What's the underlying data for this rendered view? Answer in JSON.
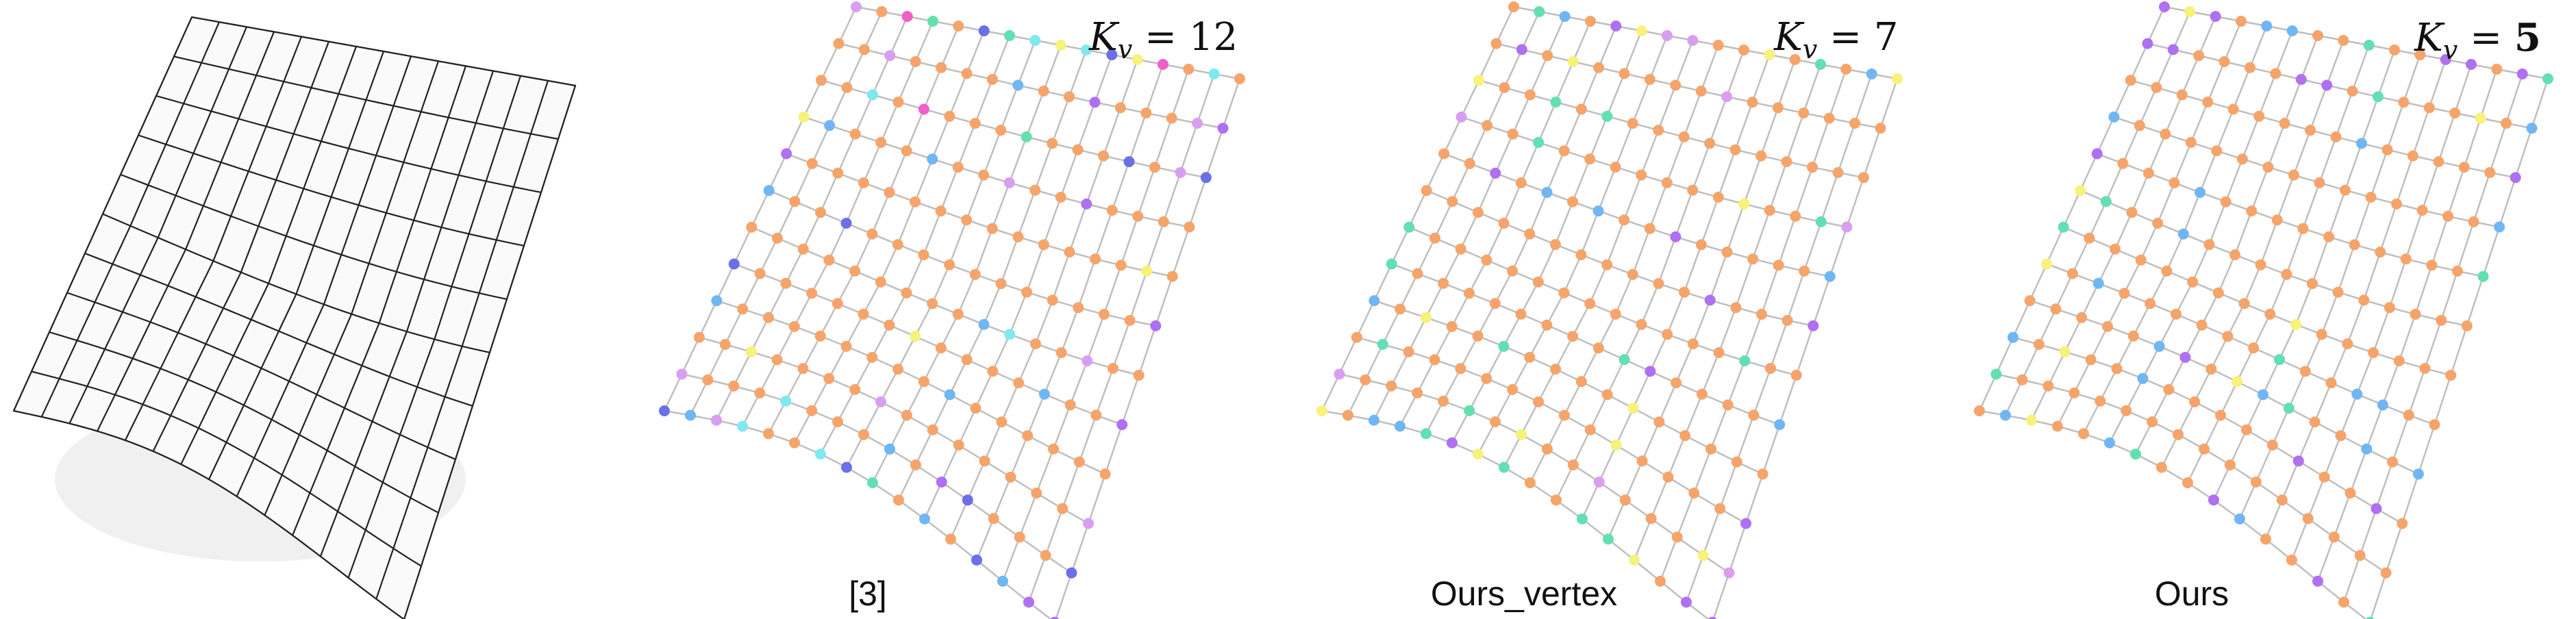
{
  "figure": {
    "panels": [
      {
        "id": "input-mesh",
        "kv_symbol": "",
        "kv_value": "",
        "caption": ""
      },
      {
        "id": "ref3",
        "kv_symbol": "K",
        "kv_sub": "v",
        "kv_eq": " = ",
        "kv_value": "12",
        "kv_bold": false,
        "caption": "[3]",
        "palette": [
          "#f6a46a",
          "#f6a46a",
          "#f6a46a",
          "#f6a46a",
          "#6fb6f5",
          "#63e0b0",
          "#b070f2",
          "#f6f27a",
          "#7fe9f0",
          "#f060c8",
          "#6b6fe8",
          "#d99ef0"
        ]
      },
      {
        "id": "ours-vertex",
        "kv_symbol": "K",
        "kv_sub": "v",
        "kv_eq": " = ",
        "kv_value": "7",
        "kv_bold": false,
        "caption": "Ours_vertex",
        "palette": [
          "#f6a46a",
          "#f6a46a",
          "#f6a46a",
          "#f6a46a",
          "#6fb6f5",
          "#63e0b0",
          "#b070f2",
          "#f6f27a",
          "#d99ef0"
        ]
      },
      {
        "id": "ours",
        "kv_symbol": "K",
        "kv_sub": "v",
        "kv_eq": " = ",
        "kv_value": "5",
        "kv_bold": true,
        "caption": "Ours",
        "palette": [
          "#f6a46a",
          "#f6a46a",
          "#f6a46a",
          "#f6a46a",
          "#6fb6f5",
          "#63e0b0",
          "#b070f2",
          "#f6f27a"
        ]
      }
    ],
    "colors": {
      "mesh_line": "#222222",
      "graph_edge": "#bfbfbf",
      "shadow": "#e6e6e6"
    }
  }
}
